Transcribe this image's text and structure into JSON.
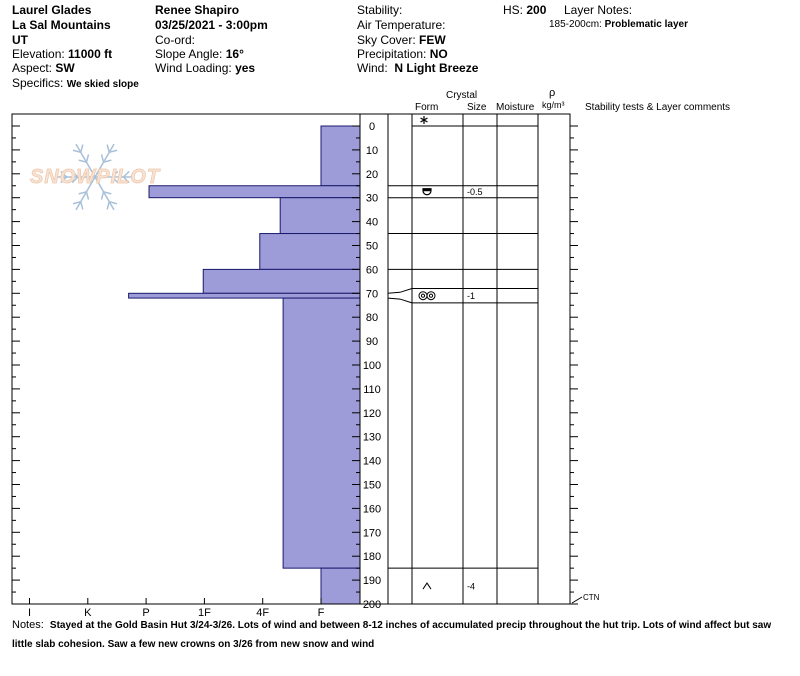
{
  "header": {
    "location": "Laurel Glades",
    "range": "La Sal Mountains",
    "state": "UT",
    "elevation_label": "Elevation:",
    "elevation": "11000 ft",
    "aspect_label": "Aspect:",
    "aspect": "SW",
    "specifics_label": "Specifics:",
    "specifics": "We skied slope",
    "observer": "Renee Shapiro",
    "datetime": "03/25/2021 - 3:00pm",
    "coord_label": "Co-ord:",
    "slope_label": "Slope Angle:",
    "slope": "16°",
    "wind_loading_label": "Wind Loading:",
    "wind_loading": "yes",
    "stability_label": "Stability:",
    "air_temp_label": "Air Temperature:",
    "sky_label": "Sky Cover:",
    "sky": "FEW",
    "precip_label": "Precipitation:",
    "precip": "NO",
    "wind_label": "Wind:",
    "wind": "N Light Breeze",
    "hs_label": "HS:",
    "hs": "200",
    "layer_notes_label": "Layer Notes:",
    "layer_note_range": "185-200cm:",
    "layer_note_text": "Problematic layer"
  },
  "columns": {
    "crystal": "Crystal",
    "form": "Form",
    "size": "Size",
    "moisture": "Moisture",
    "rho": "ρ",
    "density": "kg/m³",
    "stability": "Stability tests & Layer comments"
  },
  "logo_text": "SNOWPILOT",
  "notes": {
    "label": "Notes:",
    "text": "Stayed at the Gold Basin Hut 3/24-3/26. Lots of wind and between 8-12 inches of accumulated precip throughout the hut trip. Lots of wind affect but saw little slab cohesion. Saw a few new crowns on 3/26 from new snow and wind"
  },
  "chart_data": {
    "type": "bar",
    "orientation": "horizontal",
    "title": "",
    "y_axis": {
      "label": "",
      "range": [
        0,
        200
      ],
      "ticks": [
        0,
        10,
        20,
        30,
        40,
        50,
        60,
        70,
        80,
        90,
        100,
        110,
        120,
        130,
        140,
        150,
        160,
        170,
        180,
        190,
        200
      ]
    },
    "x_axis": {
      "label": "",
      "categories": [
        "I",
        "K",
        "P",
        "1F",
        "4F",
        "F"
      ]
    },
    "hardness_scale": {
      "I": 0,
      "K": 1,
      "P": 2,
      "1F": 3,
      "4F": 4,
      "F": 5,
      "none": 5.65
    },
    "layers": [
      {
        "top": 0,
        "bottom": 25,
        "hardness": 5.0
      },
      {
        "top": 25,
        "bottom": 30,
        "hardness": 2.05
      },
      {
        "top": 30,
        "bottom": 45,
        "hardness": 4.3
      },
      {
        "top": 45,
        "bottom": 60,
        "hardness": 3.95
      },
      {
        "top": 60,
        "bottom": 70,
        "hardness": 2.98
      },
      {
        "top": 70,
        "bottom": 72,
        "hardness": 1.7
      },
      {
        "top": 72,
        "bottom": 185,
        "hardness": 4.35
      },
      {
        "top": 185,
        "bottom": 200,
        "hardness": 5.0
      }
    ],
    "boundaries": [
      25,
      30,
      45,
      60,
      68,
      74,
      185
    ],
    "layer_rows": [
      {
        "top": 25,
        "bottom": 30,
        "form": "grain-facet-rounded-symbol",
        "size": "-0.5"
      },
      {
        "top": 68,
        "bottom": 74,
        "form": "grain-melt-symbol",
        "size": "-1"
      },
      {
        "top": 185,
        "bottom": 200,
        "form": "grain-caret-symbol",
        "size": "-4"
      }
    ],
    "surface_form": "new-snow-asterisk-symbol",
    "tests": [
      {
        "depth": 200,
        "label": "CTN"
      }
    ]
  }
}
